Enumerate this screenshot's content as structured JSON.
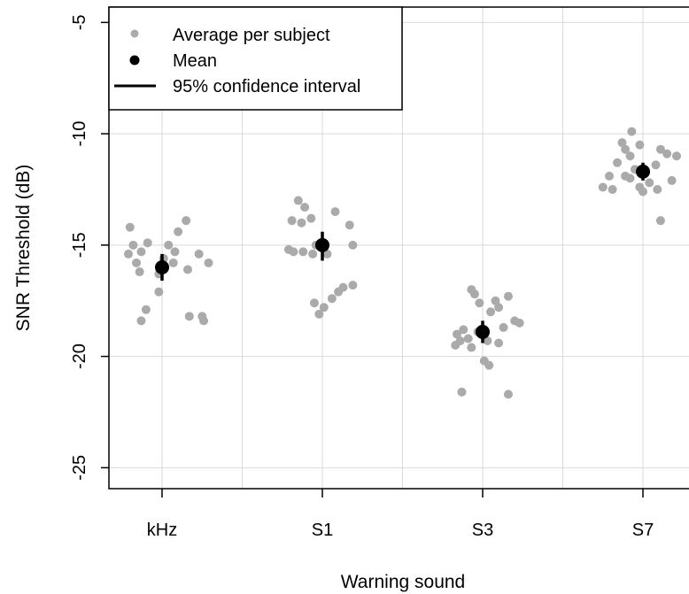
{
  "chart_data": {
    "type": "scatter",
    "xlabel": "Warning sound",
    "ylabel": "SNR Threshold (dB)",
    "categories": [
      "kHz",
      "S1",
      "S3",
      "S7"
    ],
    "ylim": [
      -26,
      -4
    ],
    "yticks": [
      -5,
      -10,
      -15,
      -20,
      -25
    ],
    "ytick_labels": [
      "-5",
      "-10",
      "-15",
      "-20",
      "-25"
    ],
    "grid": true,
    "legend_position": "top-left",
    "legend": {
      "subjects_label": "Average per subject",
      "mean_label": "Mean",
      "ci_label": "95% confidence interval"
    },
    "colors": {
      "subjects": "#aaaaaa",
      "mean": "#000000",
      "grid": "#d9d9d9"
    },
    "series": [
      {
        "name": "Average per subject",
        "points": [
          {
            "x": -0.2,
            "y": -14.2
          },
          {
            "x": 0.1,
            "y": -14.4
          },
          {
            "x": 0.15,
            "y": -13.9
          },
          {
            "x": -0.09,
            "y": -14.9
          },
          {
            "x": -0.18,
            "y": -15.0
          },
          {
            "x": -0.13,
            "y": -15.3
          },
          {
            "x": -0.21,
            "y": -15.4
          },
          {
            "x": -0.16,
            "y": -15.8
          },
          {
            "x": -0.14,
            "y": -16.2
          },
          {
            "x": 0.07,
            "y": -15.8
          },
          {
            "x": 0.23,
            "y": -15.4
          },
          {
            "x": 0.16,
            "y": -16.1
          },
          {
            "x": 0.29,
            "y": -15.8
          },
          {
            "x": -0.02,
            "y": -17.1
          },
          {
            "x": -0.1,
            "y": -17.9
          },
          {
            "x": -0.13,
            "y": -18.4
          },
          {
            "x": 0.17,
            "y": -18.2
          },
          {
            "x": 0.25,
            "y": -18.2
          },
          {
            "x": 0.26,
            "y": -18.4
          },
          {
            "x": 0.04,
            "y": -15.0
          },
          {
            "x": 0.01,
            "y": -15.6
          },
          {
            "x": -0.02,
            "y": -16.3
          },
          {
            "x": 0.08,
            "y": -15.3
          },
          {
            "x": 0.85,
            "y": -13.0
          },
          {
            "x": 0.89,
            "y": -13.3
          },
          {
            "x": 0.93,
            "y": -13.8
          },
          {
            "x": 0.81,
            "y": -13.9
          },
          {
            "x": 0.87,
            "y": -14.0
          },
          {
            "x": 1.08,
            "y": -13.5
          },
          {
            "x": 1.17,
            "y": -14.1
          },
          {
            "x": 0.96,
            "y": -15.0
          },
          {
            "x": 1.19,
            "y": -15.0
          },
          {
            "x": 0.79,
            "y": -15.2
          },
          {
            "x": 0.82,
            "y": -15.3
          },
          {
            "x": 0.88,
            "y": -15.3
          },
          {
            "x": 0.94,
            "y": -15.4
          },
          {
            "x": 1.03,
            "y": -15.4
          },
          {
            "x": 1.13,
            "y": -16.9
          },
          {
            "x": 1.19,
            "y": -16.8
          },
          {
            "x": 1.1,
            "y": -17.1
          },
          {
            "x": 1.06,
            "y": -17.4
          },
          {
            "x": 0.95,
            "y": -17.6
          },
          {
            "x": 1.01,
            "y": -17.8
          },
          {
            "x": 0.98,
            "y": -18.1
          },
          {
            "x": 1.93,
            "y": -17.0
          },
          {
            "x": 1.95,
            "y": -17.2
          },
          {
            "x": 1.98,
            "y": -17.6
          },
          {
            "x": 2.08,
            "y": -17.5
          },
          {
            "x": 2.1,
            "y": -17.8
          },
          {
            "x": 2.16,
            "y": -17.3
          },
          {
            "x": 2.05,
            "y": -18.0
          },
          {
            "x": 2.2,
            "y": -18.4
          },
          {
            "x": 2.23,
            "y": -18.5
          },
          {
            "x": 2.13,
            "y": -18.7
          },
          {
            "x": 1.97,
            "y": -18.9
          },
          {
            "x": 1.88,
            "y": -18.8
          },
          {
            "x": 1.84,
            "y": -19.0
          },
          {
            "x": 1.86,
            "y": -19.3
          },
          {
            "x": 1.91,
            "y": -19.2
          },
          {
            "x": 1.83,
            "y": -19.5
          },
          {
            "x": 1.93,
            "y": -19.6
          },
          {
            "x": 2.03,
            "y": -19.3
          },
          {
            "x": 2.1,
            "y": -19.4
          },
          {
            "x": 2.01,
            "y": -20.2
          },
          {
            "x": 2.04,
            "y": -20.4
          },
          {
            "x": 1.87,
            "y": -21.6
          },
          {
            "x": 2.16,
            "y": -21.7
          },
          {
            "x": 2.93,
            "y": -9.9
          },
          {
            "x": 2.98,
            "y": -10.5
          },
          {
            "x": 2.87,
            "y": -10.4
          },
          {
            "x": 2.89,
            "y": -10.7
          },
          {
            "x": 2.92,
            "y": -11.0
          },
          {
            "x": 3.11,
            "y": -10.7
          },
          {
            "x": 3.15,
            "y": -10.9
          },
          {
            "x": 3.21,
            "y": -11.0
          },
          {
            "x": 3.08,
            "y": -11.4
          },
          {
            "x": 2.84,
            "y": -11.3
          },
          {
            "x": 2.95,
            "y": -11.6
          },
          {
            "x": 3.01,
            "y": -11.6
          },
          {
            "x": 2.79,
            "y": -11.9
          },
          {
            "x": 2.89,
            "y": -11.9
          },
          {
            "x": 2.92,
            "y": -12.0
          },
          {
            "x": 3.04,
            "y": -12.2
          },
          {
            "x": 3.18,
            "y": -12.1
          },
          {
            "x": 2.75,
            "y": -12.4
          },
          {
            "x": 2.81,
            "y": -12.5
          },
          {
            "x": 2.98,
            "y": -12.4
          },
          {
            "x": 3.0,
            "y": -12.6
          },
          {
            "x": 3.09,
            "y": -12.5
          },
          {
            "x": 3.11,
            "y": -13.9
          }
        ]
      },
      {
        "name": "Mean",
        "points": [
          {
            "x": 0,
            "y": -16.0
          },
          {
            "x": 1,
            "y": -15.0
          },
          {
            "x": 2,
            "y": -18.9
          },
          {
            "x": 3,
            "y": -11.7
          }
        ]
      },
      {
        "name": "95% confidence interval",
        "intervals": [
          {
            "x": 0,
            "low": -16.6,
            "high": -15.4
          },
          {
            "x": 1,
            "low": -15.7,
            "high": -14.4
          },
          {
            "x": 2,
            "low": -19.4,
            "high": -18.4
          },
          {
            "x": 3,
            "low": -12.1,
            "high": -11.3
          }
        ]
      }
    ]
  }
}
